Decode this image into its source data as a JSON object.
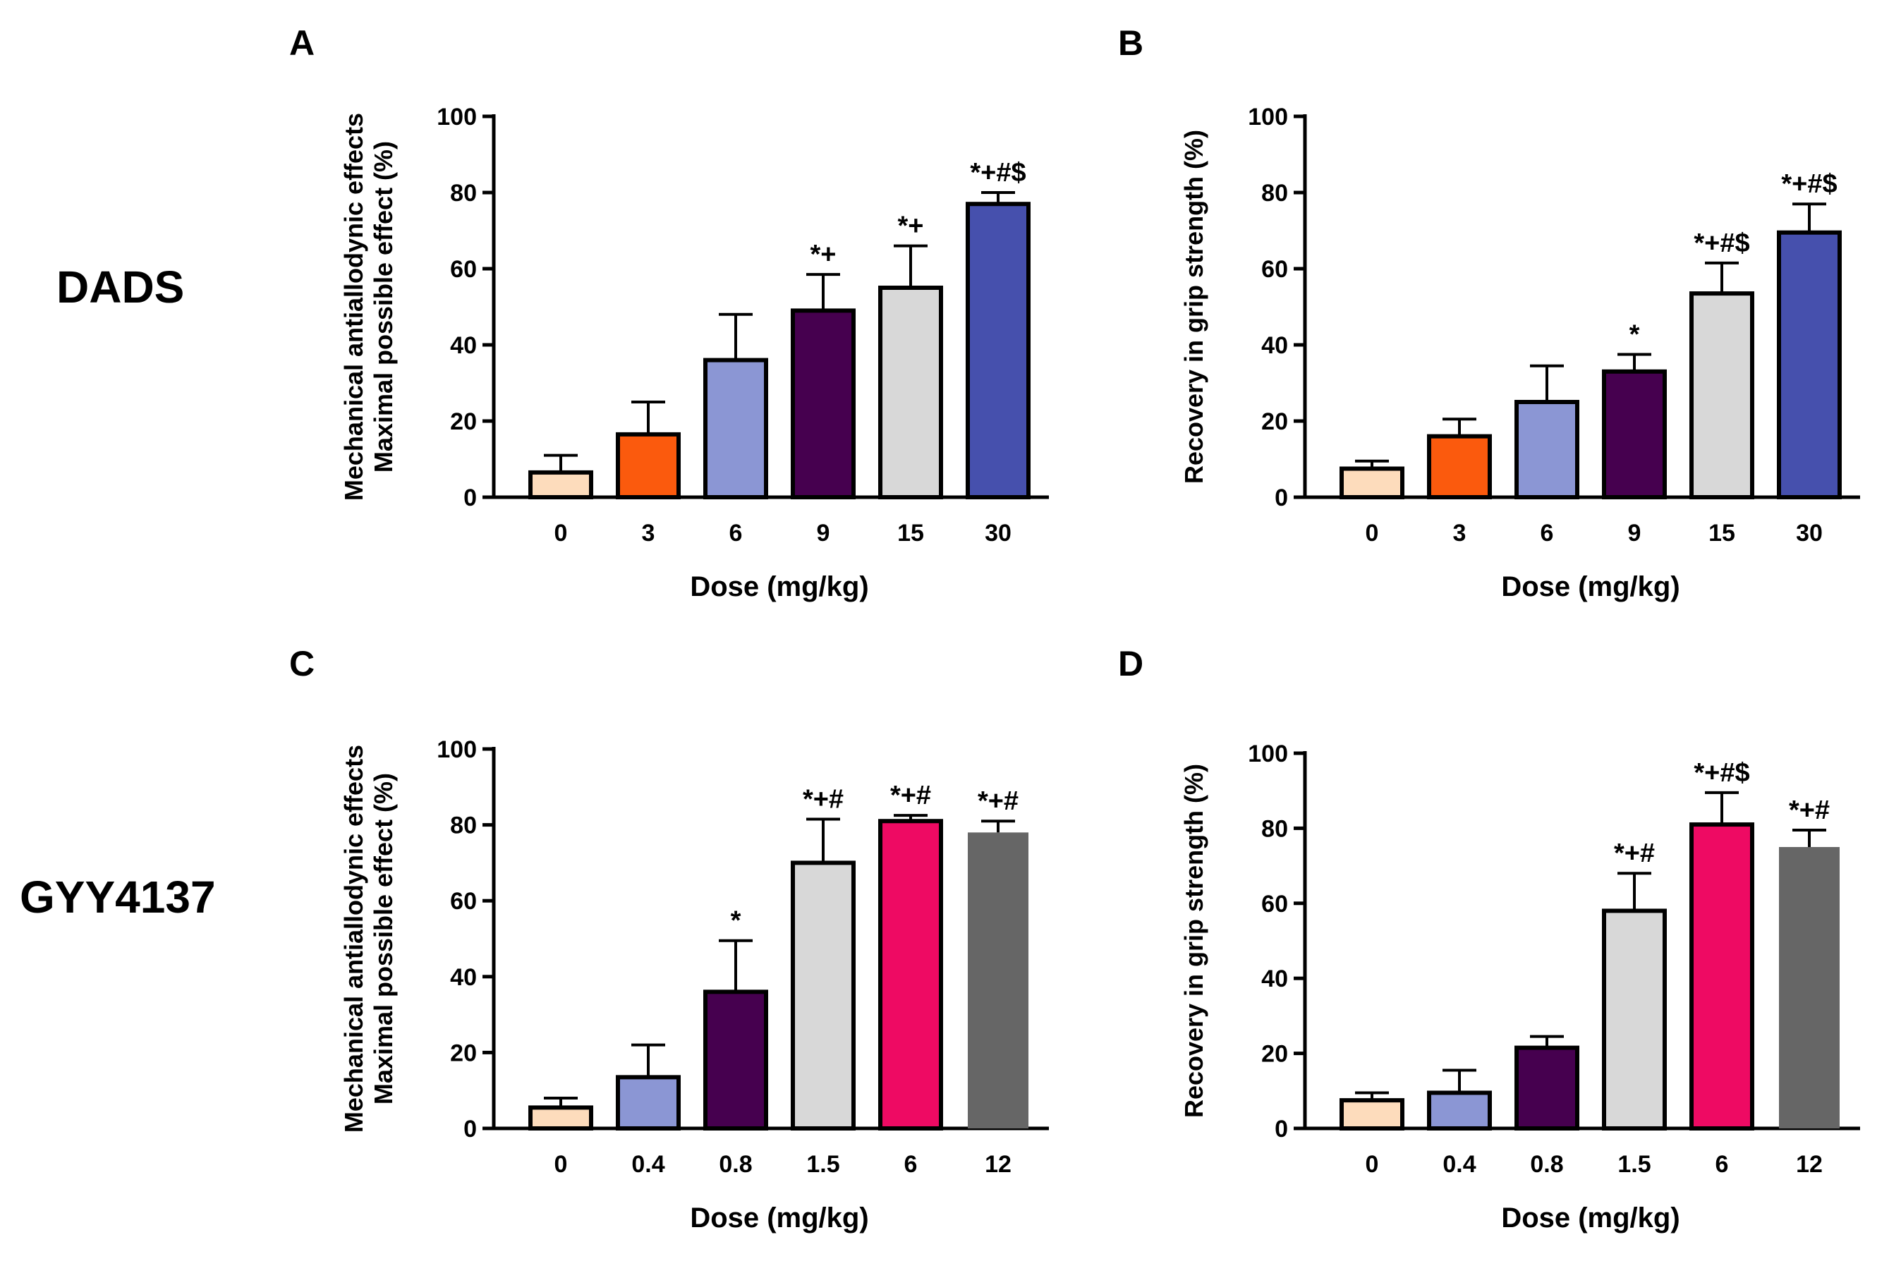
{
  "row_labels": [
    "DADS",
    "GYY4137"
  ],
  "chart_data": [
    {
      "type": "bar",
      "panel": "A",
      "group": "DADS",
      "xlabel": "Dose (mg/kg)",
      "ylabel_lines": [
        "Mechanical antiallodynic effects",
        "Maximal possible effect (%)"
      ],
      "ylim": [
        0,
        100
      ],
      "yticks": [
        0,
        20,
        40,
        60,
        80,
        100
      ],
      "categories": [
        "0",
        "3",
        "6",
        "9",
        "15",
        "30"
      ],
      "values": [
        6.5,
        16.5,
        36,
        49,
        55,
        77
      ],
      "errors": [
        4.5,
        8.5,
        12,
        9.5,
        11,
        3
      ],
      "colors": [
        "#fddcbc",
        "#fb5a0d",
        "#8b96d4",
        "#46004f",
        "#d8d8d8",
        "#4650ad"
      ],
      "outlined": [
        true,
        true,
        true,
        true,
        true,
        true
      ],
      "annotations": [
        "",
        "",
        "",
        "*+",
        "*+",
        "*+#$"
      ]
    },
    {
      "type": "bar",
      "panel": "B",
      "group": "DADS",
      "xlabel": "Dose (mg/kg)",
      "ylabel_lines": [
        "Recovery in grip strength (%)"
      ],
      "ylim": [
        0,
        100
      ],
      "yticks": [
        0,
        20,
        40,
        60,
        80,
        100
      ],
      "categories": [
        "0",
        "3",
        "6",
        "9",
        "15",
        "30"
      ],
      "values": [
        7.5,
        16,
        25,
        33,
        53.5,
        69.5
      ],
      "errors": [
        2,
        4.5,
        9.5,
        4.5,
        8,
        7.5
      ],
      "colors": [
        "#fddcbc",
        "#fb5a0d",
        "#8b96d4",
        "#46004f",
        "#d8d8d8",
        "#4650ad"
      ],
      "outlined": [
        true,
        true,
        true,
        true,
        true,
        true
      ],
      "annotations": [
        "",
        "",
        "",
        "*",
        "*+#$",
        "*+#$"
      ]
    },
    {
      "type": "bar",
      "panel": "C",
      "group": "GYY4137",
      "xlabel": "Dose (mg/kg)",
      "ylabel_lines": [
        "Mechanical antiallodynic effects",
        "Maximal possible effect (%)"
      ],
      "ylim": [
        0,
        100
      ],
      "yticks": [
        0,
        20,
        40,
        60,
        80,
        100
      ],
      "categories": [
        "0",
        "0.4",
        "0.8",
        "1.5",
        "6",
        "12"
      ],
      "values": [
        5.5,
        13.5,
        36,
        70,
        81,
        78
      ],
      "errors": [
        2.5,
        8.5,
        13.5,
        11.5,
        1.5,
        3
      ],
      "colors": [
        "#fddcbc",
        "#8b96d4",
        "#46004f",
        "#d8d8d8",
        "#ee0a63",
        "#666666"
      ],
      "outlined": [
        true,
        true,
        true,
        true,
        true,
        false
      ],
      "annotations": [
        "",
        "",
        "*",
        "*+#",
        "*+#",
        "*+#"
      ]
    },
    {
      "type": "bar",
      "panel": "D",
      "group": "GYY4137",
      "xlabel": "Dose (mg/kg)",
      "ylabel_lines": [
        "Recovery in grip strength (%)"
      ],
      "ylim": [
        0,
        100
      ],
      "yticks": [
        0,
        20,
        40,
        60,
        80,
        100
      ],
      "categories": [
        "0",
        "0.4",
        "0.8",
        "1.5",
        "6",
        "12"
      ],
      "values": [
        7.5,
        9.5,
        21.5,
        58,
        81,
        75
      ],
      "errors": [
        2,
        6,
        3,
        10,
        8.5,
        4.5
      ],
      "colors": [
        "#fddcbc",
        "#8b96d4",
        "#46004f",
        "#d8d8d8",
        "#ee0a63",
        "#666666"
      ],
      "outlined": [
        true,
        true,
        true,
        true,
        true,
        false
      ],
      "annotations": [
        "",
        "",
        "",
        "*+#",
        "*+#$",
        "*+#"
      ]
    }
  ]
}
